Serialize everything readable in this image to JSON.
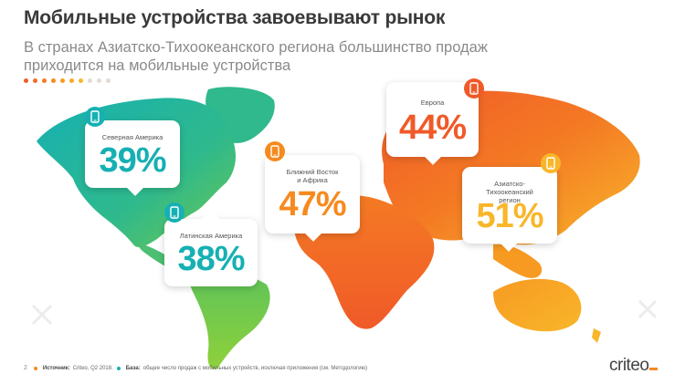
{
  "title": "Мобильные устройства завоевывают рынок",
  "subtitle": "В странах Азиатско-Тихоокеанского региона большинство продаж приходится на мобильные устройства",
  "colors": {
    "teal": "#16b0b3",
    "green": "#4cbf72",
    "orange": "#f68a1f",
    "yellow": "#f8b62a",
    "red_orange": "#f05a28"
  },
  "regions": [
    {
      "name": "Северная Америка",
      "value": "39%",
      "color": "#16b0b3",
      "icon": "mobile-phone-icon"
    },
    {
      "name": "Латинская Америка",
      "value": "38%",
      "color": "#16b0b3",
      "icon": "mobile-phone-icon"
    },
    {
      "name": "Ближний Восток и Африка",
      "value": "47%",
      "color": "#f68a1f",
      "icon": "mobile-phone-icon"
    },
    {
      "name": "Европа",
      "value": "44%",
      "color": "#f05a28",
      "icon": "mobile-phone-icon"
    },
    {
      "name": "Азиатско-Тихоокеанский регион",
      "value": "51%",
      "color": "#f8b62a",
      "icon": "mobile-phone-icon"
    }
  ],
  "footer": {
    "page": "2",
    "source_label": "Источник:",
    "source_text": "Criteo, Q2 2018.",
    "base_label": "База:",
    "base_text": "общее число продаж с мобильных устройств, исключая приложения (см. Методологию)"
  },
  "logo": "criteo"
}
